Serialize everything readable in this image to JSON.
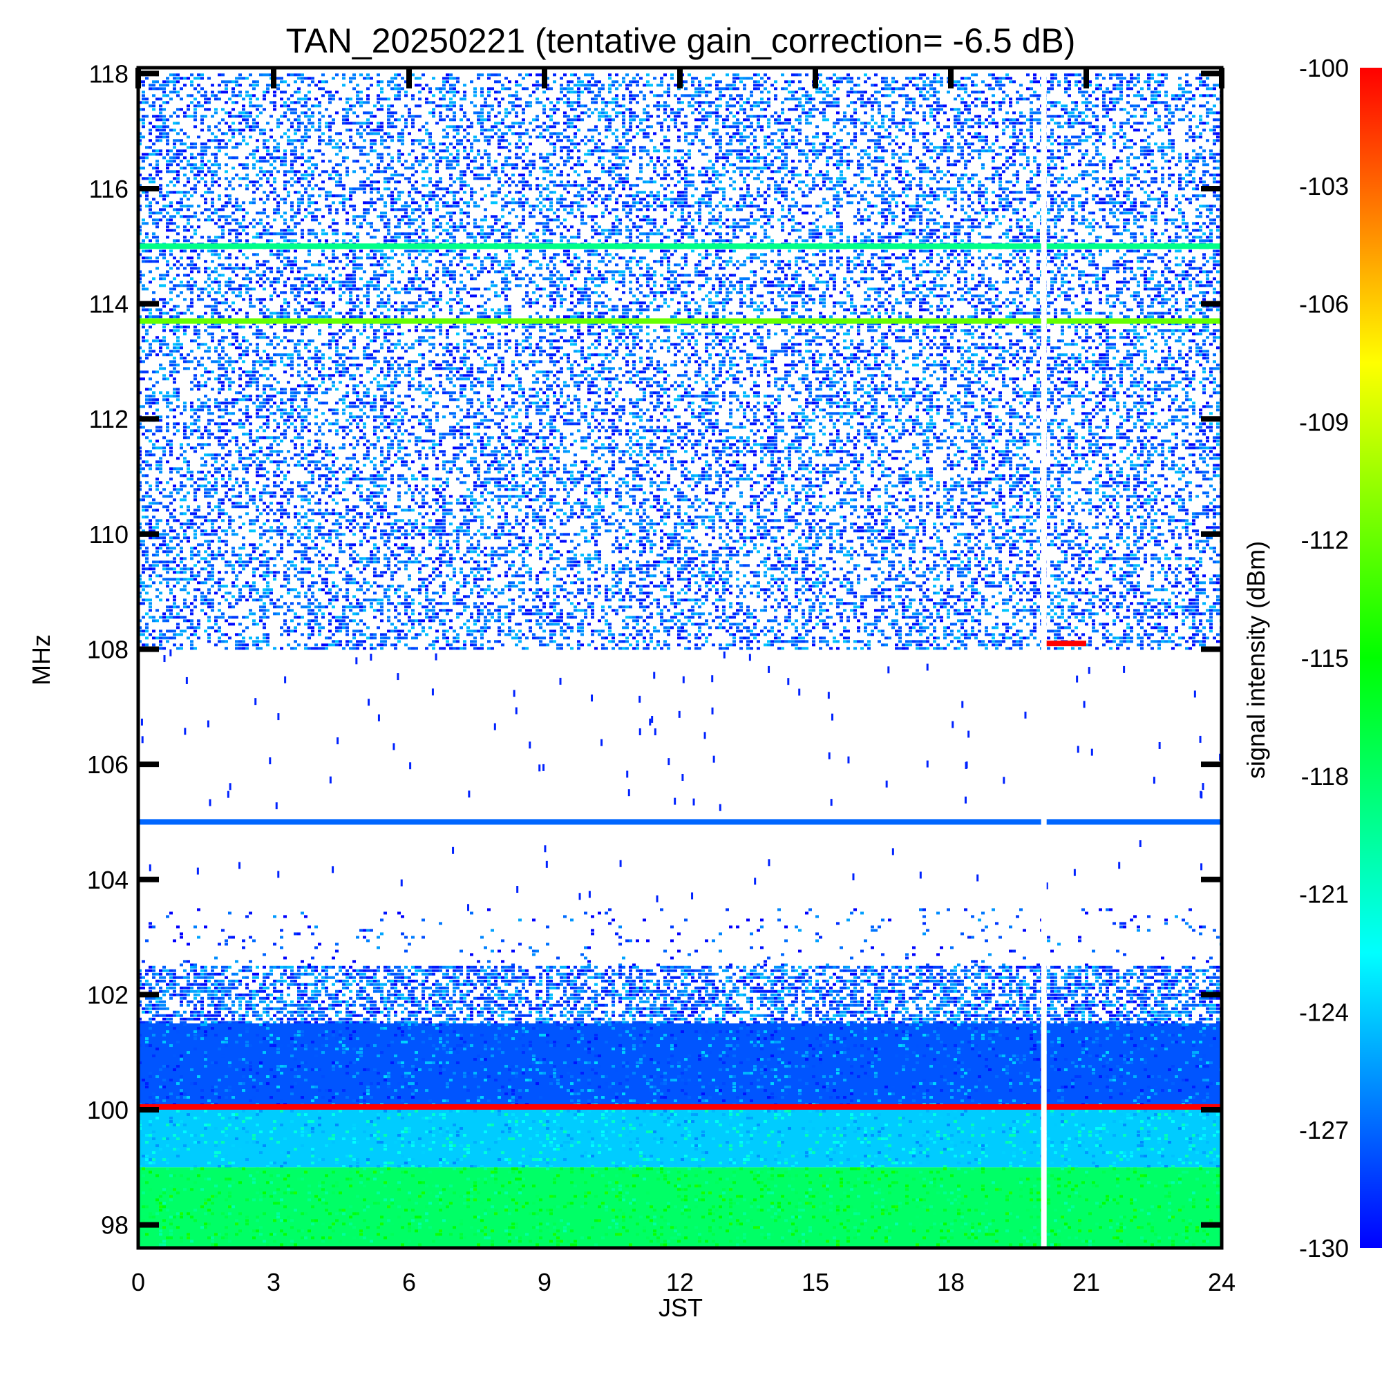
{
  "chart_data": {
    "type": "heatmap",
    "title": "TAN_20250221 (tentative gain_correction= -6.5 dB)",
    "xlabel": "JST",
    "ylabel": "MHz",
    "colorbar_label": "signal intensity (dBm)",
    "xlim": [
      0,
      24
    ],
    "ylim": [
      97.6,
      118.1
    ],
    "x_ticks": [
      "0",
      "3",
      "6",
      "9",
      "12",
      "15",
      "18",
      "21",
      "24"
    ],
    "y_ticks": [
      "98",
      "100",
      "102",
      "104",
      "106",
      "108",
      "110",
      "112",
      "114",
      "116",
      "118"
    ],
    "colorbar_range": [
      -130,
      -100
    ],
    "colorbar_ticks": [
      "-100",
      "-103",
      "-106",
      "-109",
      "-112",
      "-115",
      "-118",
      "-121",
      "-124",
      "-127",
      "-130"
    ],
    "colormap": [
      "#0000ff",
      "#00ffff",
      "#00ff00",
      "#ffff00",
      "#ff0000"
    ],
    "data_gap_jst": [
      20.0,
      20.1
    ],
    "bands": [
      {
        "mhz_from": 108.0,
        "mhz_to": 118.0,
        "level_dbm": -128,
        "density": 0.4
      },
      {
        "mhz_from": 102.5,
        "mhz_to": 103.5,
        "level_dbm": -129,
        "density": 0.05
      },
      {
        "mhz_from": 101.5,
        "mhz_to": 102.5,
        "level_dbm": -128,
        "density": 0.6
      },
      {
        "mhz_from": 100.0,
        "mhz_to": 101.5,
        "level_dbm": -127.5,
        "density": 1.0
      },
      {
        "mhz_from": 99.0,
        "mhz_to": 100.0,
        "level_dbm": -124,
        "density": 1.0
      },
      {
        "mhz_from": 97.6,
        "mhz_to": 99.0,
        "level_dbm": -118,
        "density": 1.0
      }
    ],
    "constant_lines": [
      {
        "mhz": 115.0,
        "level_dbm": -119
      },
      {
        "mhz": 113.7,
        "level_dbm": -112
      },
      {
        "mhz": 105.0,
        "level_dbm": -127
      },
      {
        "mhz": 100.05,
        "level_dbm": -100
      }
    ],
    "short_segments": [
      {
        "mhz": 108.1,
        "jst_from": 20.1,
        "jst_to": 21.0,
        "level_dbm": -100
      }
    ]
  }
}
